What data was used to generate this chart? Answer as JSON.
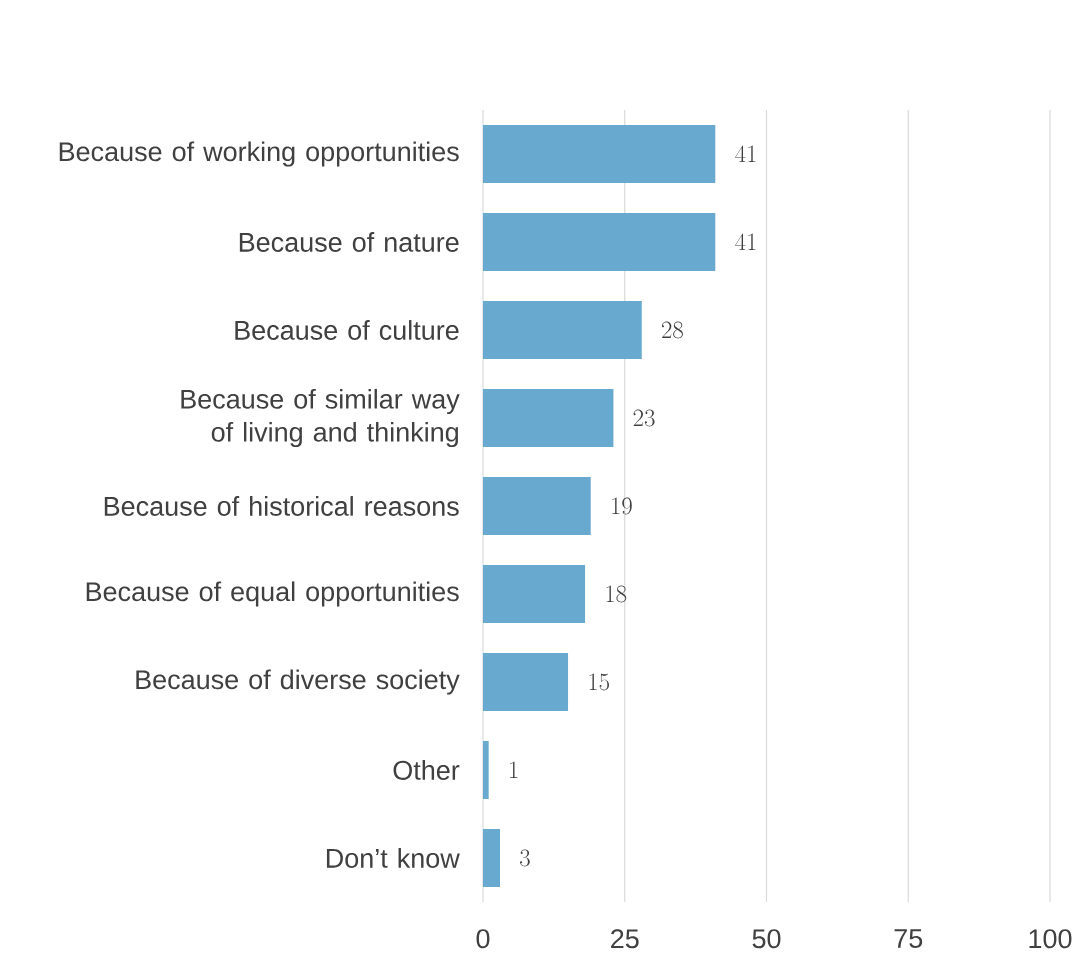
{
  "chart_data": {
    "type": "bar",
    "orientation": "horizontal",
    "categories": [
      "Because of working opportunities",
      "Because of nature",
      "Because of culture",
      "Because of similar way of living and thinking",
      "Because of historical reasons",
      "Because of equal opportunities",
      "Because of diverse society",
      "Other",
      "Don’t know"
    ],
    "values": [
      41,
      41,
      28,
      23,
      19,
      18,
      15,
      1,
      3
    ],
    "color": "#67a9cf",
    "xlim": [
      0,
      100
    ],
    "xticks": [
      0,
      25,
      50,
      75,
      100
    ],
    "grid": "x",
    "data_labels": true
  }
}
